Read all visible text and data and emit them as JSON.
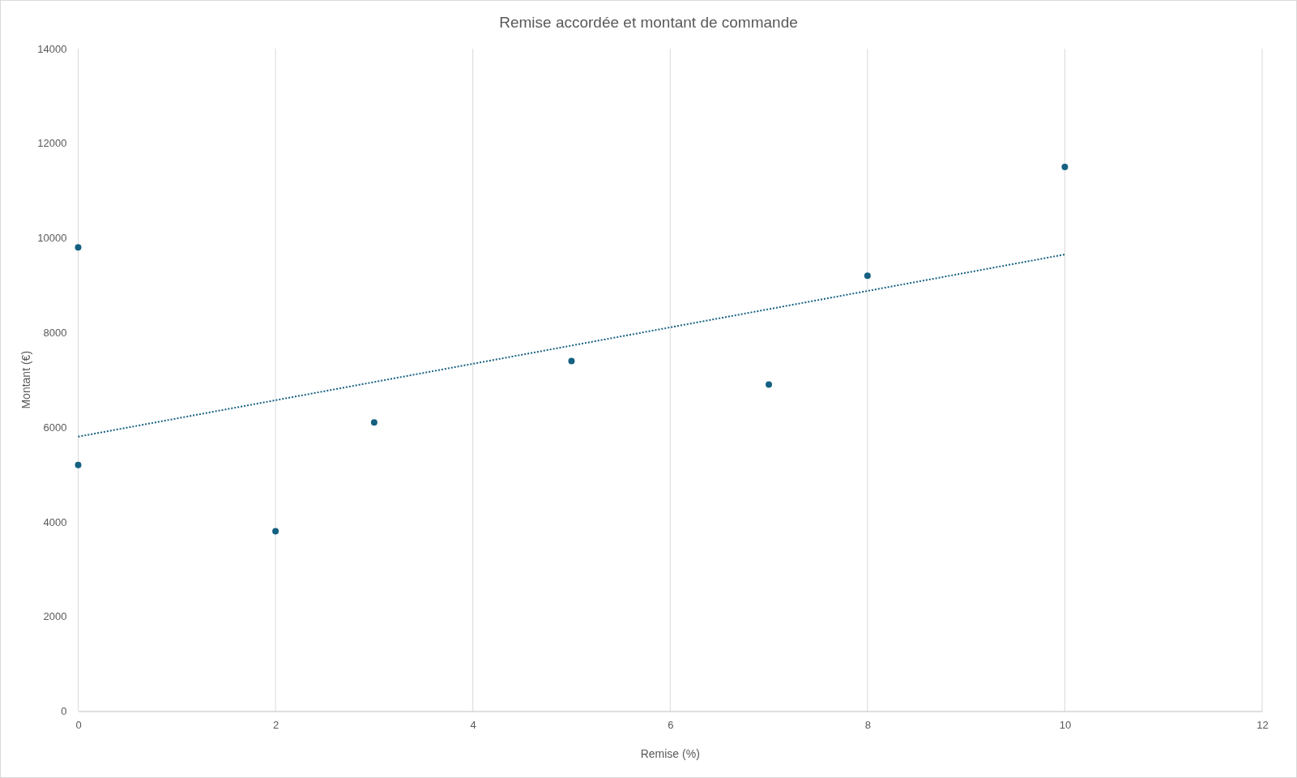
{
  "chart_data": {
    "type": "scatter",
    "title": "Remise accordée et montant de commande",
    "xlabel": "Remise (%)",
    "ylabel": "Montant (€)",
    "x": [
      0,
      0,
      2,
      3,
      5,
      7,
      8,
      10
    ],
    "series": [
      {
        "color": "#156082",
        "values": [
          9800,
          5200,
          3800,
          6100,
          7400,
          6900,
          9200,
          11500
        ]
      },
      {
        "type": "line",
        "color": "#156082",
        "x": [
          0,
          10
        ],
        "values": [
          5800,
          9650
        ],
        "marker": "none",
        "line_style": "dotted"
      }
    ],
    "xlim": [
      0,
      12
    ],
    "xticks": [
      0,
      2,
      4,
      6,
      8,
      10,
      12
    ],
    "ylim": [
      0,
      14000
    ],
    "yticks": [
      0,
      2000,
      4000,
      6000,
      8000,
      10000,
      12000,
      14000
    ],
    "grid": "x",
    "marker": "circle"
  }
}
